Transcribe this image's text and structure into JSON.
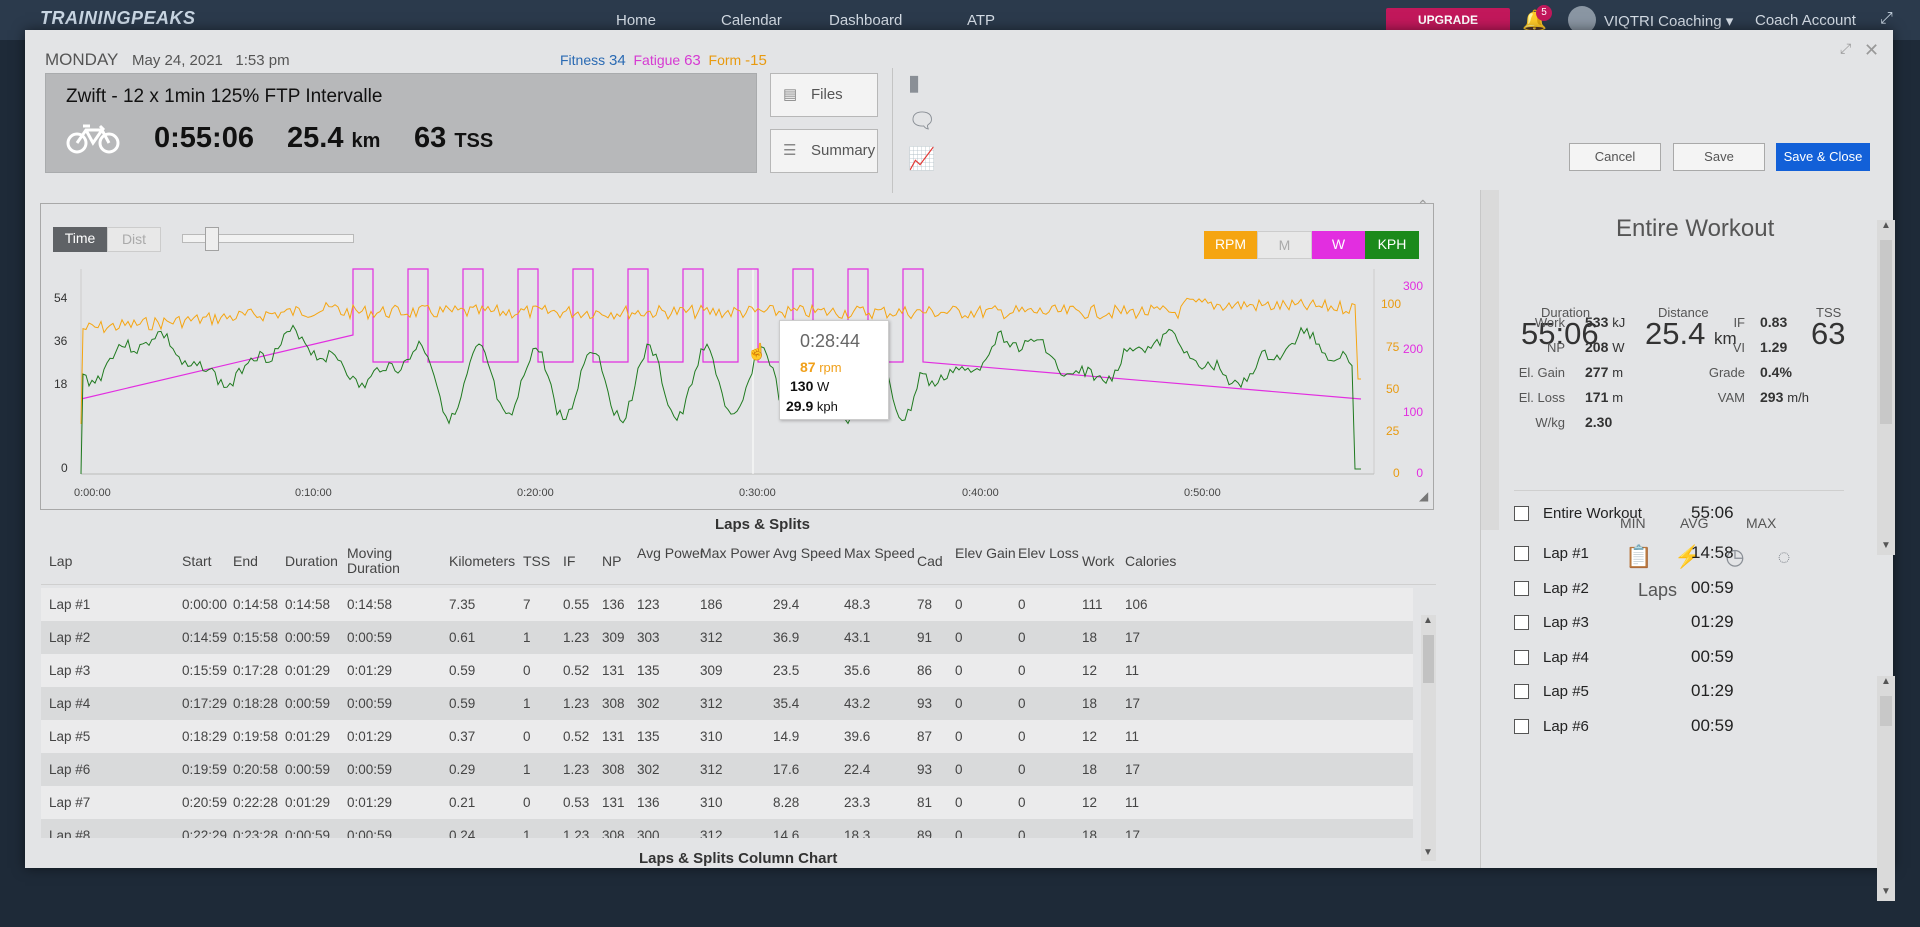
{
  "app": {
    "logo": "TRAININGPEAKS"
  },
  "nav": {
    "links": [
      "Home",
      "Calendar",
      "Dashboard",
      "ATP"
    ],
    "upgrade": "UPGRADE",
    "notifications": "5",
    "user": "VIQTRI Coaching ▾",
    "account": "Coach Account"
  },
  "header": {
    "day": "MONDAY",
    "date": "May 24, 2021",
    "time": "1:53 pm",
    "fitness_label": "Fitness",
    "fitness": "34",
    "fatigue_label": "Fatigue",
    "fatigue": "63",
    "form_label": "Form",
    "form": "-15",
    "title": "Zwift - 12 x 1min 125% FTP Intervalle",
    "duration": "0:55:06",
    "distance": "25.4",
    "distance_unit": "km",
    "tss": "63",
    "tss_unit": "TSS",
    "files_label": "Files",
    "summary_label": "Summary",
    "cancel": "Cancel",
    "save": "Save",
    "save_close": "Save & Close"
  },
  "chart": {
    "toggle_time": "Time",
    "toggle_dist": "Dist",
    "legend": [
      "RPM",
      "M",
      "W",
      "KPH"
    ],
    "colors": {
      "rpm": "#f5a511",
      "power": "#e22ee0",
      "speed": "#1f7a1f",
      "kph_btn": "#1b8a1b",
      "rpm_btn": "#f5a511",
      "w_btn": "#e22ee0"
    },
    "x_ticks": [
      "0:00:00",
      "0:10:00",
      "0:20:00",
      "0:30:00",
      "0:40:00",
      "0:50:00"
    ],
    "y_left_ticks": [
      "54",
      "36",
      "18",
      "0"
    ],
    "y_rpm_ticks": [
      "100",
      "75",
      "50",
      "25",
      "0"
    ],
    "y_power_ticks": [
      "300",
      "200",
      "100",
      "0"
    ],
    "tooltip": {
      "time": "0:28:44",
      "rpm": "87",
      "rpm_unit": "rpm",
      "w": "130",
      "w_unit": "W",
      "kph": "29.9",
      "kph_unit": "kph"
    }
  },
  "laps": {
    "title": "Laps & Splits",
    "columns": [
      "Lap",
      "Start",
      "End",
      "Duration",
      "Moving Duration",
      "Kilometers",
      "TSS",
      "IF",
      "NP",
      "Avg Power",
      "Max Power",
      "Avg Speed",
      "Max Speed",
      "Cad",
      "Elev Gain",
      "Elev Loss",
      "Work",
      "Calories"
    ],
    "rows": [
      [
        "Lap #1",
        "0:00:00",
        "0:14:58",
        "0:14:58",
        "0:14:58",
        "7.35",
        "7",
        "0.55",
        "136",
        "123",
        "186",
        "29.4",
        "48.3",
        "78",
        "0",
        "0",
        "111",
        "106"
      ],
      [
        "Lap #2",
        "0:14:59",
        "0:15:58",
        "0:00:59",
        "0:00:59",
        "0.61",
        "1",
        "1.23",
        "309",
        "303",
        "312",
        "36.9",
        "43.1",
        "91",
        "0",
        "0",
        "18",
        "17"
      ],
      [
        "Lap #3",
        "0:15:59",
        "0:17:28",
        "0:01:29",
        "0:01:29",
        "0.59",
        "0",
        "0.52",
        "131",
        "135",
        "309",
        "23.5",
        "35.6",
        "86",
        "0",
        "0",
        "12",
        "11"
      ],
      [
        "Lap #4",
        "0:17:29",
        "0:18:28",
        "0:00:59",
        "0:00:59",
        "0.59",
        "1",
        "1.23",
        "308",
        "302",
        "312",
        "35.4",
        "43.2",
        "93",
        "0",
        "0",
        "18",
        "17"
      ],
      [
        "Lap #5",
        "0:18:29",
        "0:19:58",
        "0:01:29",
        "0:01:29",
        "0.37",
        "0",
        "0.52",
        "131",
        "135",
        "310",
        "14.9",
        "39.6",
        "87",
        "0",
        "0",
        "12",
        "11"
      ],
      [
        "Lap #6",
        "0:19:59",
        "0:20:58",
        "0:00:59",
        "0:00:59",
        "0.29",
        "1",
        "1.23",
        "308",
        "302",
        "312",
        "17.6",
        "22.4",
        "93",
        "0",
        "0",
        "18",
        "17"
      ],
      [
        "Lap #7",
        "0:20:59",
        "0:22:28",
        "0:01:29",
        "0:01:29",
        "0.21",
        "0",
        "0.53",
        "131",
        "136",
        "310",
        "8.28",
        "23.3",
        "81",
        "0",
        "0",
        "12",
        "11"
      ],
      [
        "Lap #8",
        "0:22:29",
        "0:23:28",
        "0:00:59",
        "0:00:59",
        "0.24",
        "1",
        "1.23",
        "308",
        "300",
        "312",
        "14.6",
        "18.3",
        "89",
        "0",
        "0",
        "18",
        "17"
      ]
    ],
    "column_chart_title": "Laps & Splits Column Chart"
  },
  "summary": {
    "title": "Entire Workout",
    "duration_label": "Duration",
    "duration": "55:06",
    "distance_label": "Distance",
    "distance": "25.4",
    "distance_unit": "km",
    "tss_label": "TSS",
    "tss": "63",
    "left_stats": [
      {
        "label": "Work",
        "value": "533",
        "unit": "kJ"
      },
      {
        "label": "NP",
        "value": "208",
        "unit": "W"
      },
      {
        "label": "El. Gain",
        "value": "277",
        "unit": "m"
      },
      {
        "label": "El. Loss",
        "value": "171",
        "unit": "m"
      },
      {
        "label": "W/kg",
        "value": "2.30",
        "unit": ""
      }
    ],
    "right_stats": [
      {
        "label": "IF",
        "value": "0.83",
        "unit": ""
      },
      {
        "label": "VI",
        "value": "1.29",
        "unit": ""
      },
      {
        "label": "Grade",
        "value": "0.4%",
        "unit": ""
      },
      {
        "label": "VAM",
        "value": "293",
        "unit": "m/h"
      }
    ],
    "tabs": [
      "MIN",
      "AVG",
      "MAX"
    ],
    "laps_title": "Laps",
    "laps_list": [
      {
        "name": "Entire Workout",
        "time": "55:06"
      },
      {
        "name": "Lap #1",
        "time": "14:58"
      },
      {
        "name": "Lap #2",
        "time": "00:59"
      },
      {
        "name": "Lap #3",
        "time": "01:29"
      },
      {
        "name": "Lap #4",
        "time": "00:59"
      },
      {
        "name": "Lap #5",
        "time": "01:29"
      },
      {
        "name": "Lap #6",
        "time": "00:59"
      }
    ]
  }
}
